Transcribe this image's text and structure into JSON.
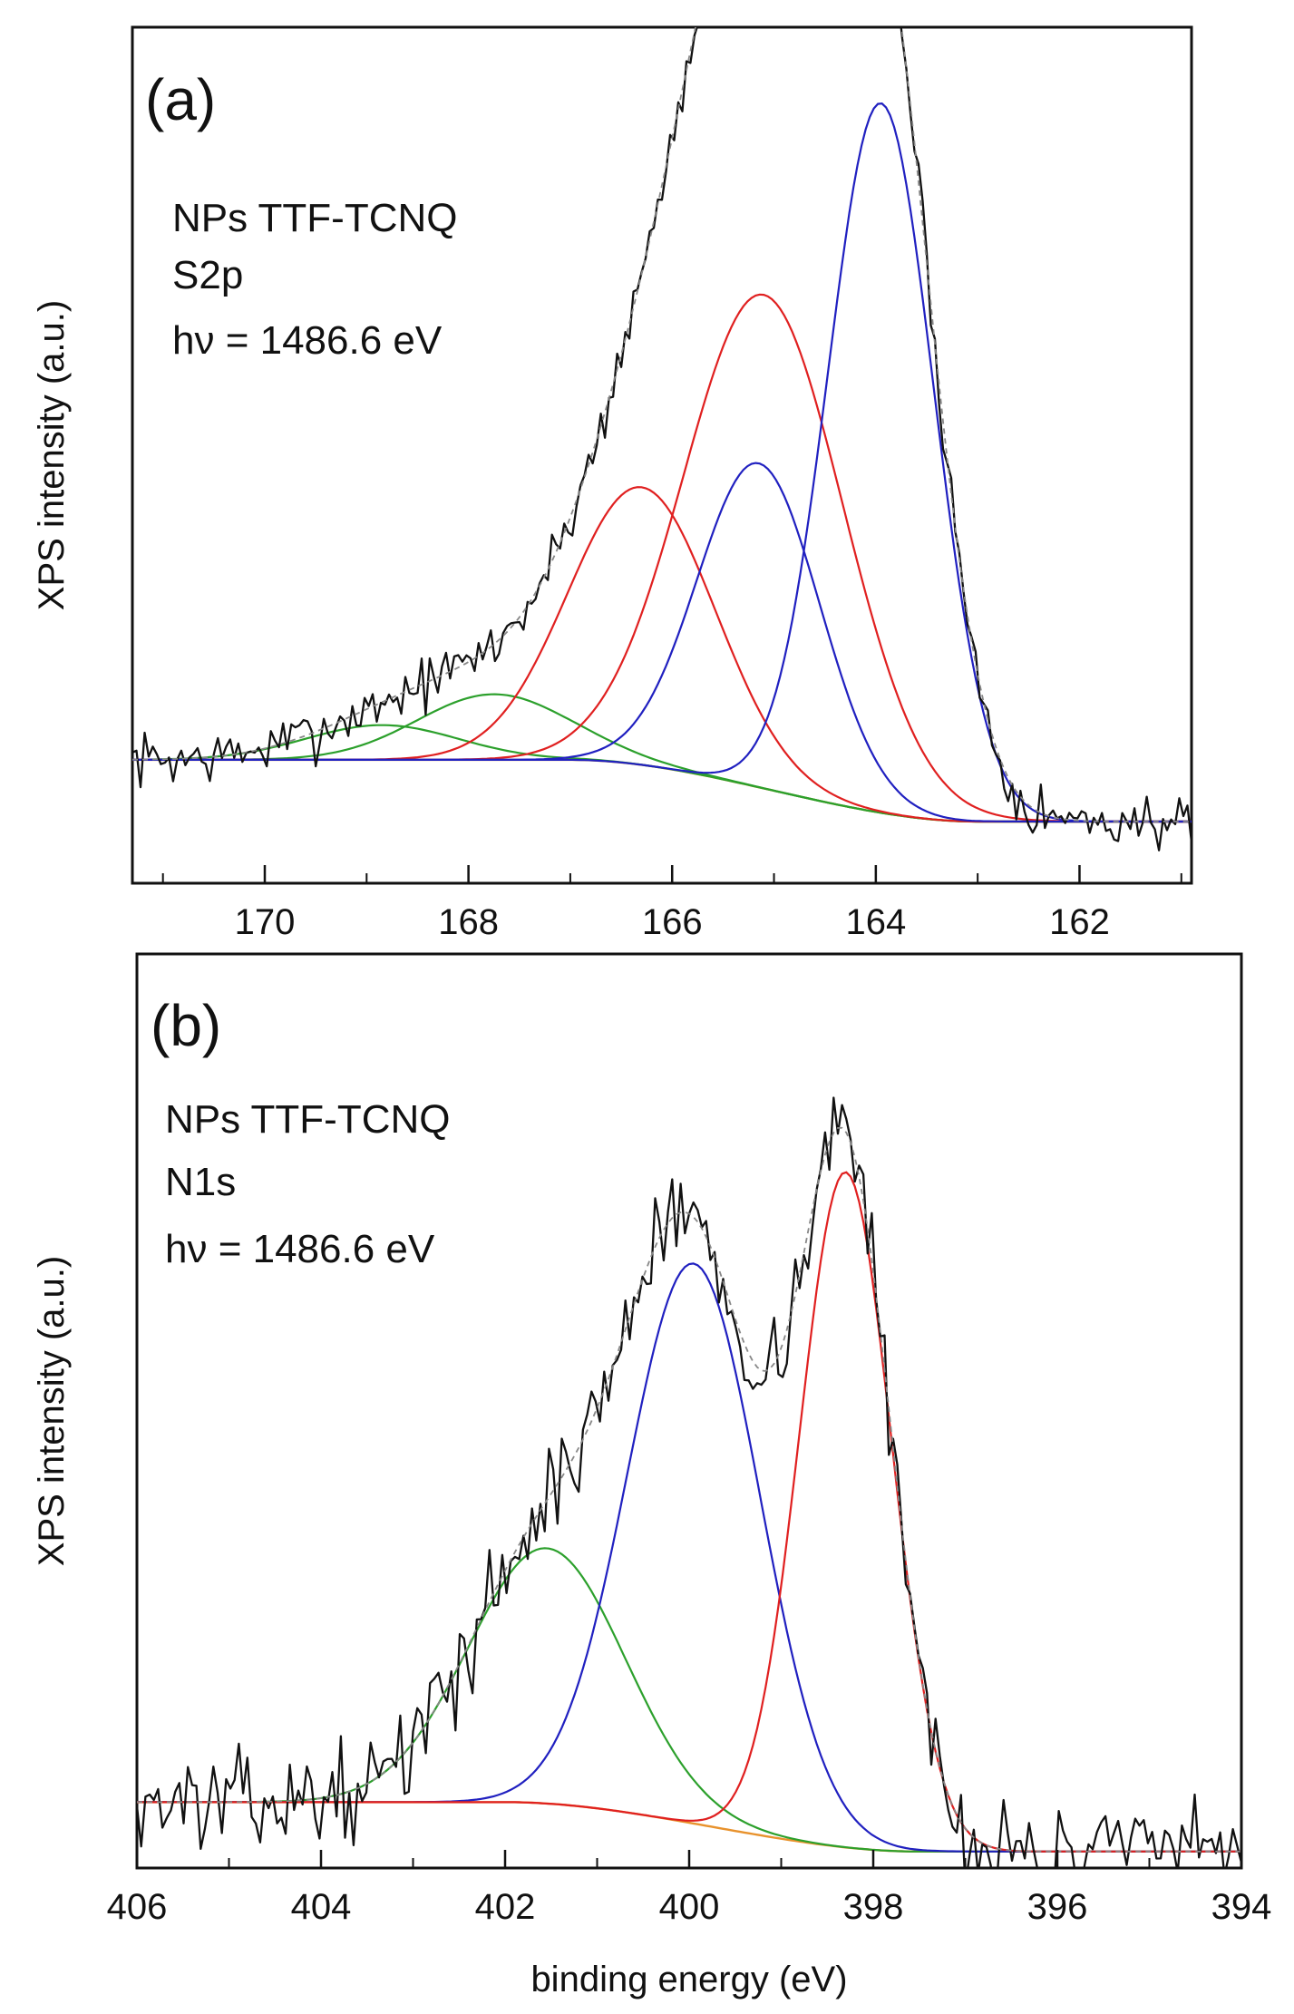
{
  "figure": {
    "xlabel": "binding energy (eV)"
  },
  "chart_data": [
    {
      "type": "line",
      "panel": "(a)",
      "title": "NPs TTF-TCNQ",
      "annotations": [
        "NPs TTF-TCNQ",
        "S2p",
        "hν = 1486.6 eV"
      ],
      "xlabel": "binding energy (eV)",
      "ylabel": "XPS intensity (a.u.)",
      "xlim": [
        171.3,
        160.9
      ],
      "x_reversed": true,
      "ylim": [
        -0.06,
        1.05
      ],
      "xticks": [
        170,
        168,
        166,
        164,
        162
      ],
      "yticks": [],
      "background": {
        "type": "linear_step",
        "high": 0.1,
        "low": 0.02,
        "x_start": 167,
        "x_end": 163,
        "color": "#e8922c"
      },
      "components": [
        {
          "name": "S2p component 169",
          "color": "#2ca02c",
          "center": 168.85,
          "height": 0.045,
          "width": 0.75
        },
        {
          "name": "S2p component 168",
          "color": "#2ca02c",
          "center": 167.75,
          "height": 0.085,
          "width": 0.75
        },
        {
          "name": "S2p component 166",
          "color": "#e02020",
          "center": 166.3,
          "height": 0.36,
          "width": 0.72
        },
        {
          "name": "S2p component 165 red",
          "color": "#e02020",
          "center": 165.1,
          "height": 0.64,
          "width": 0.78
        },
        {
          "name": "S2p component 165 blue",
          "color": "#2020c0",
          "center": 165.15,
          "height": 0.42,
          "width": 0.6
        },
        {
          "name": "S2p component 164",
          "color": "#2020c0",
          "center": 163.95,
          "height": 0.92,
          "width": 0.52
        }
      ],
      "measured": {
        "name": "measured spectrum",
        "color": "#111111",
        "noise": 0.022,
        "seed": 7
      },
      "fit": {
        "name": "fit envelope",
        "color": "#888888",
        "style": "dashed"
      }
    },
    {
      "type": "line",
      "panel": "(b)",
      "title": "NPs TTF-TCNQ",
      "annotations": [
        "NPs TTF-TCNQ",
        "N1s",
        "hν = 1486.6 eV"
      ],
      "xlabel": "binding energy (eV)",
      "ylabel": "XPS intensity (a.u.)",
      "xlim": [
        406,
        394
      ],
      "x_reversed": true,
      "ylim": [
        -0.08,
        1.03
      ],
      "xticks": [
        406,
        404,
        402,
        400,
        398,
        396,
        394
      ],
      "yticks": [],
      "background": {
        "type": "linear_step",
        "high": 0.0,
        "low": -0.06,
        "x_start": 402,
        "x_end": 397.5,
        "color": "#e8922c"
      },
      "components": [
        {
          "name": "N1s component 401.6",
          "color": "#2ca02c",
          "center": 401.55,
          "height": 0.31,
          "width": 0.85
        },
        {
          "name": "N1s component 400",
          "color": "#2020c0",
          "center": 399.95,
          "height": 0.68,
          "width": 0.72
        },
        {
          "name": "N1s component 398.3",
          "color": "#e02020",
          "center": 398.3,
          "height": 0.82,
          "width": 0.5
        }
      ],
      "measured": {
        "name": "measured spectrum",
        "color": "#111111",
        "noise": 0.035,
        "seed": 13
      },
      "fit": {
        "name": "fit envelope",
        "color": "#888888",
        "style": "dashed"
      }
    }
  ]
}
